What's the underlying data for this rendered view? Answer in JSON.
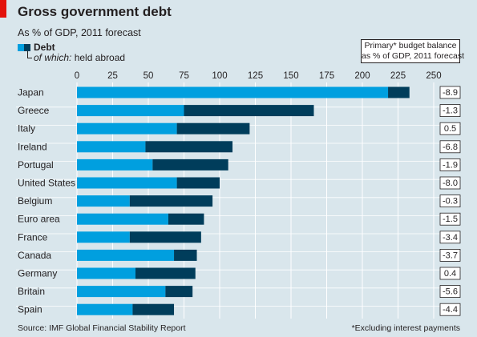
{
  "header": {
    "title": "Gross government debt",
    "subtitle": "As % of GDP, 2011 forecast"
  },
  "legend": {
    "debt": "Debt",
    "abroad_prefix": "of which:",
    "abroad_suffix": " held abroad"
  },
  "balance_header": {
    "line1": "Primary* budget balance",
    "line2": "as % of GDP, 2011 forecast"
  },
  "footer": {
    "source": "Source: IMF Global Financial Stability Report",
    "footnote": "*Excluding interest payments"
  },
  "colors": {
    "background": "#d9e6ec",
    "debt": "#009fdf",
    "held_abroad": "#003d5b",
    "accent": "#e3120b"
  },
  "chart_data": {
    "type": "bar",
    "orientation": "horizontal",
    "stacked": true,
    "categories": [
      "Japan",
      "Greece",
      "Italy",
      "Ireland",
      "Portugal",
      "United States",
      "Belgium",
      "Euro area",
      "France",
      "Canada",
      "Germany",
      "Britain",
      "Spain"
    ],
    "series": [
      {
        "name": "Debt",
        "values": [
          233,
          166,
          121,
          109,
          106,
          100,
          95,
          89,
          87,
          84,
          83,
          81,
          68
        ]
      },
      {
        "name": "held abroad",
        "values": [
          15,
          91,
          51,
          61,
          53,
          30,
          58,
          25,
          50,
          16,
          42,
          19,
          29
        ]
      }
    ],
    "xlim": [
      0,
      250
    ],
    "xticks": [
      "0",
      "25",
      "50",
      "75",
      "100",
      "125",
      "150",
      "175",
      "200",
      "225",
      "250"
    ],
    "gridlines": true,
    "balance_values": [
      "-8.9",
      "-1.3",
      "0.5",
      "-6.8",
      "-1.9",
      "-8.0",
      "-0.3",
      "-1.5",
      "-3.4",
      "-3.7",
      "0.4",
      "-5.6",
      "-4.4"
    ]
  }
}
